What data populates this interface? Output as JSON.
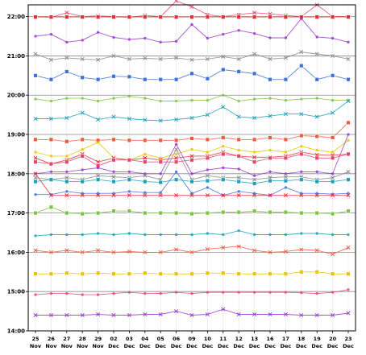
{
  "chart_data": {
    "type": "line",
    "title": "",
    "xlabel": "",
    "ylabel": "",
    "x_ticks": [
      {
        "day": "25",
        "month": "Nov"
      },
      {
        "day": "26",
        "month": "Nov"
      },
      {
        "day": "27",
        "month": "Nov"
      },
      {
        "day": "28",
        "month": "Nov"
      },
      {
        "day": "29",
        "month": "Nov"
      },
      {
        "day": "02",
        "month": "Dec"
      },
      {
        "day": "03",
        "month": "Dec"
      },
      {
        "day": "04",
        "month": "Dec"
      },
      {
        "day": "05",
        "month": "Dec"
      },
      {
        "day": "06",
        "month": "Dec"
      },
      {
        "day": "09",
        "month": "Dec"
      },
      {
        "day": "10",
        "month": "Dec"
      },
      {
        "day": "11",
        "month": "Dec"
      },
      {
        "day": "12",
        "month": "Dec"
      },
      {
        "day": "13",
        "month": "Dec"
      },
      {
        "day": "16",
        "month": "Dec"
      },
      {
        "day": "17",
        "month": "Dec"
      },
      {
        "day": "18",
        "month": "Dec"
      },
      {
        "day": "19",
        "month": "Dec"
      },
      {
        "day": "20",
        "month": "Dec"
      },
      {
        "day": "23",
        "month": "Dec"
      }
    ],
    "y_ticks": [
      "14:00",
      "15:00",
      "16:00",
      "17:00",
      "18:00",
      "19:00",
      "20:00",
      "21:00",
      "22:00"
    ],
    "ylim": [
      14.0,
      22.3
    ],
    "grid": {
      "horizontal": true,
      "vertical": true
    },
    "legend": "none",
    "series": [
      {
        "color": "#e8436e",
        "values": [
          22.0,
          21.98,
          22.1,
          22.0,
          22.02,
          22.0,
          21.98,
          22.03,
          22.0,
          22.4,
          22.25,
          22.05,
          22.0,
          22.05,
          22.1,
          22.07,
          22.03,
          22.0,
          22.3,
          22.0,
          22.0
        ]
      },
      {
        "color": "#e03030",
        "values": [
          21.99,
          21.99,
          21.99,
          21.99,
          21.99,
          21.99,
          21.99,
          21.99,
          21.99,
          21.99,
          21.99,
          21.99,
          21.99,
          21.99,
          21.99,
          21.99,
          21.99,
          21.99,
          21.99,
          21.99,
          21.99
        ]
      },
      {
        "color": "#9b35d0",
        "values": [
          21.5,
          21.55,
          21.35,
          21.4,
          21.6,
          21.47,
          21.42,
          21.45,
          21.35,
          21.37,
          21.8,
          21.45,
          21.55,
          21.65,
          21.57,
          21.46,
          21.46,
          21.95,
          21.48,
          21.45,
          21.35
        ]
      },
      {
        "color": "#888888",
        "values": [
          21.05,
          20.9,
          20.95,
          20.92,
          20.9,
          21.0,
          20.92,
          20.94,
          20.92,
          20.95,
          20.9,
          20.92,
          20.98,
          20.92,
          21.05,
          20.92,
          20.95,
          21.1,
          21.05,
          21.0,
          20.92
        ]
      },
      {
        "color": "#3f6fd8",
        "values": [
          20.5,
          20.4,
          20.6,
          20.45,
          20.4,
          20.48,
          20.47,
          20.4,
          20.4,
          20.4,
          20.55,
          20.42,
          20.65,
          20.6,
          20.55,
          20.4,
          20.4,
          20.75,
          20.4,
          20.5,
          20.4
        ]
      },
      {
        "color": "#7dc242",
        "values": [
          19.9,
          19.85,
          19.92,
          19.92,
          19.85,
          19.92,
          19.97,
          19.92,
          19.85,
          19.85,
          19.87,
          19.87,
          20.0,
          19.85,
          19.9,
          19.92,
          19.87,
          19.9,
          19.92,
          19.87,
          19.87
        ]
      },
      {
        "color": "#1aa0b8",
        "values": [
          19.4,
          19.4,
          19.42,
          19.55,
          19.38,
          19.45,
          19.4,
          19.37,
          19.35,
          19.38,
          19.42,
          19.5,
          19.7,
          19.45,
          19.42,
          19.47,
          19.52,
          19.52,
          19.45,
          19.55,
          19.85
        ]
      },
      {
        "color": "#f05a3c",
        "values": [
          18.87,
          18.87,
          18.82,
          18.87,
          18.85,
          18.87,
          18.85,
          18.85,
          18.85,
          18.85,
          18.9,
          18.87,
          18.92,
          18.87,
          18.87,
          18.92,
          18.87,
          18.97,
          18.95,
          18.92,
          19.3
        ]
      },
      {
        "color": "#e8c300",
        "values": [
          18.55,
          18.45,
          18.45,
          18.62,
          18.8,
          18.4,
          18.35,
          18.5,
          18.4,
          18.5,
          18.62,
          18.55,
          18.7,
          18.6,
          18.55,
          18.6,
          18.55,
          18.7,
          18.6,
          18.55,
          18.85
        ]
      },
      {
        "color": "#e03030",
        "values": [
          18.4,
          18.25,
          18.35,
          18.5,
          18.3,
          18.4,
          18.35,
          18.4,
          18.35,
          18.4,
          18.45,
          18.45,
          18.55,
          18.45,
          18.42,
          18.42,
          18.45,
          18.55,
          18.48,
          18.47,
          18.5
        ]
      },
      {
        "color": "#e8436e",
        "values": [
          18.3,
          18.25,
          18.3,
          18.45,
          18.2,
          18.35,
          18.35,
          18.3,
          18.3,
          18.3,
          18.35,
          18.4,
          18.5,
          18.45,
          18.3,
          18.4,
          18.4,
          18.5,
          18.4,
          18.4,
          18.5
        ]
      },
      {
        "color": "#9b35d0",
        "values": [
          18.0,
          18.05,
          18.05,
          18.1,
          18.15,
          18.05,
          18.05,
          18.0,
          18.0,
          18.75,
          18.0,
          18.1,
          18.15,
          18.12,
          17.95,
          18.05,
          18.0,
          18.05,
          18.05,
          18.0,
          19.0
        ]
      },
      {
        "color": "#888888",
        "values": [
          17.9,
          17.85,
          17.9,
          17.85,
          17.95,
          17.92,
          17.9,
          17.95,
          17.85,
          18.62,
          17.85,
          17.95,
          17.9,
          17.9,
          17.85,
          17.9,
          17.92,
          17.92,
          17.85,
          17.9,
          18.05
        ]
      },
      {
        "color": "#1aa0b8",
        "values": [
          17.8,
          17.85,
          17.8,
          17.8,
          17.85,
          17.8,
          17.85,
          17.8,
          17.78,
          17.85,
          17.8,
          17.82,
          17.85,
          17.8,
          17.75,
          17.82,
          17.82,
          17.85,
          17.8,
          17.8,
          17.85
        ]
      },
      {
        "color": "#3f6fd8",
        "values": [
          17.47,
          17.47,
          17.55,
          17.5,
          17.5,
          17.5,
          17.55,
          17.52,
          17.52,
          18.05,
          17.5,
          17.65,
          17.45,
          17.55,
          17.5,
          17.45,
          17.65,
          17.5,
          17.5,
          17.48,
          17.5
        ]
      },
      {
        "color": "#e03030",
        "values": [
          18.0,
          17.45,
          17.45,
          17.45,
          17.45,
          17.45,
          17.45,
          17.45,
          17.45,
          17.45,
          17.45,
          17.45,
          17.45,
          17.45,
          17.45,
          17.45,
          17.45,
          17.45,
          17.45,
          17.45,
          17.45
        ]
      },
      {
        "color": "#7dc242",
        "values": [
          17.0,
          17.15,
          17.0,
          16.98,
          17.0,
          17.05,
          17.05,
          17.0,
          17.0,
          17.0,
          16.98,
          17.0,
          17.02,
          17.02,
          17.05,
          17.02,
          17.02,
          17.0,
          17.0,
          16.98,
          17.05
        ]
      },
      {
        "color": "#1aa0b8",
        "values": [
          16.42,
          16.45,
          16.45,
          16.45,
          16.48,
          16.45,
          16.48,
          16.45,
          16.45,
          16.45,
          16.45,
          16.48,
          16.45,
          16.55,
          16.45,
          16.45,
          16.45,
          16.48,
          16.48,
          16.45,
          16.45
        ]
      },
      {
        "color": "#f05a3c",
        "values": [
          16.05,
          16.0,
          16.05,
          16.0,
          16.05,
          16.0,
          16.02,
          16.0,
          16.0,
          16.07,
          16.0,
          16.08,
          16.12,
          16.15,
          16.05,
          16.0,
          16.02,
          16.07,
          16.05,
          15.95,
          16.12
        ]
      },
      {
        "color": "#e8c300",
        "values": [
          15.45,
          15.45,
          15.47,
          15.45,
          15.47,
          15.45,
          15.45,
          15.47,
          15.45,
          15.45,
          15.45,
          15.47,
          15.47,
          15.45,
          15.45,
          15.45,
          15.45,
          15.5,
          15.5,
          15.45,
          15.45
        ]
      },
      {
        "color": "#e8436e",
        "values": [
          14.92,
          14.95,
          14.95,
          14.92,
          14.92,
          14.95,
          14.98,
          14.95,
          14.95,
          14.98,
          14.95,
          14.98,
          14.98,
          14.98,
          14.98,
          14.98,
          14.98,
          14.97,
          14.95,
          14.98,
          15.05
        ]
      },
      {
        "color": "#9b35d0",
        "values": [
          14.4,
          14.4,
          14.4,
          14.4,
          14.42,
          14.4,
          14.4,
          14.42,
          14.42,
          14.5,
          14.4,
          14.42,
          14.55,
          14.42,
          14.42,
          14.42,
          14.42,
          14.4,
          14.4,
          14.4,
          14.45
        ]
      }
    ]
  }
}
